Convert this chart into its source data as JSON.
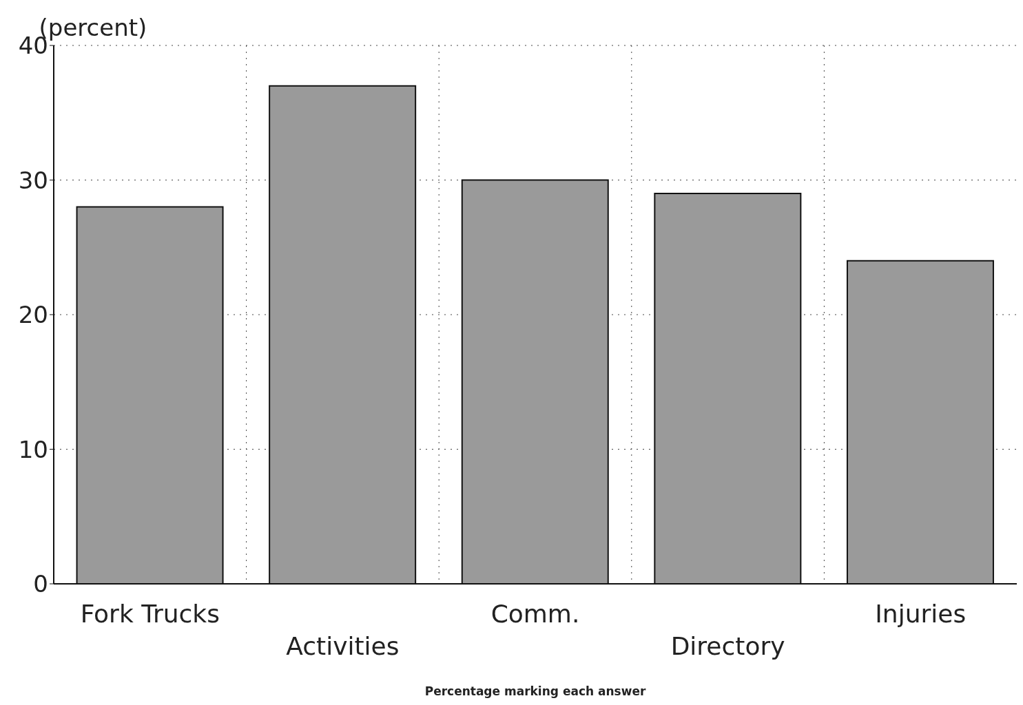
{
  "chart_data": {
    "type": "bar",
    "ylabel": "(percent)",
    "xlabel": "Percentage marking each answer",
    "categories": [
      "Fork Trucks",
      "Activities",
      "Comm.",
      "Directory",
      "Injuries"
    ],
    "values": [
      28,
      37,
      30,
      29,
      24
    ],
    "color": "#9a9a9a",
    "ylim": [
      0,
      40
    ],
    "yticks": [
      0,
      10,
      20,
      30,
      40
    ],
    "grid": true
  }
}
